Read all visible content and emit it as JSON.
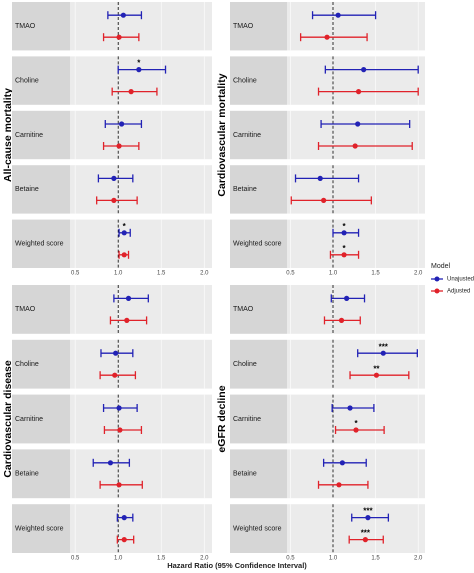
{
  "x_label": "Hazard Ratio (95% Confidence Interval)",
  "legend_title": "Model",
  "chart_data": [
    {
      "type": "forest",
      "title": "All-cause mortality",
      "categories": [
        "TMAO",
        "Choline",
        "Carnitine",
        "Betaine",
        "Weighted score"
      ],
      "xlim": [
        0.44,
        2.09
      ],
      "xticks": [
        0.5,
        {
          "value": 1,
          "label": "1.0"
        },
        1.5,
        {
          "value": 2,
          "label": "2.0"
        }
      ],
      "reference": 1,
      "series": [
        {
          "name": "Unajusted",
          "color": "#2222b5",
          "values": [
            1.06,
            1.24,
            1.04,
            0.95,
            1.07
          ],
          "lower": [
            0.88,
            1.0,
            0.85,
            0.77,
            1.01
          ],
          "upper": [
            1.27,
            1.55,
            1.27,
            1.17,
            1.14
          ],
          "significance": [
            null,
            "*",
            null,
            null,
            "*"
          ]
        },
        {
          "name": "Adjusted",
          "color": "#e0222a",
          "values": [
            1.01,
            1.15,
            1.01,
            0.95,
            1.07
          ],
          "lower": [
            0.83,
            0.93,
            0.83,
            0.75,
            1.01
          ],
          "upper": [
            1.24,
            1.45,
            1.24,
            1.22,
            1.12
          ],
          "significance": [
            null,
            null,
            null,
            null,
            null
          ]
        }
      ]
    },
    {
      "type": "forest",
      "title": "Cardiovascular mortality",
      "categories": [
        "TMAO",
        "Choline",
        "Carnitine",
        "Betaine",
        "Weighted score"
      ],
      "xlim": [
        0.46,
        2.08
      ],
      "xticks": [
        0.5,
        {
          "value": 1,
          "label": "1.0"
        },
        1.5,
        {
          "value": 2,
          "label": "2.0"
        }
      ],
      "reference": 1,
      "series": [
        {
          "name": "Unajusted",
          "color": "#2222b5",
          "values": [
            1.06,
            1.36,
            1.29,
            0.85,
            1.13
          ],
          "lower": [
            0.76,
            0.91,
            0.86,
            0.56,
            1.0
          ],
          "upper": [
            1.5,
            2.0,
            1.9,
            1.3,
            1.3
          ],
          "significance": [
            null,
            null,
            null,
            null,
            "*"
          ]
        },
        {
          "name": "Adjusted",
          "color": "#e0222a",
          "values": [
            0.93,
            1.3,
            1.26,
            0.89,
            1.13
          ],
          "lower": [
            0.62,
            0.83,
            0.83,
            0.51,
            0.97
          ],
          "upper": [
            1.4,
            2.0,
            1.93,
            1.45,
            1.3
          ],
          "significance": [
            null,
            null,
            null,
            null,
            "*"
          ]
        }
      ]
    },
    {
      "type": "forest",
      "title": "Cardiovascular disease",
      "categories": [
        "TMAO",
        "Choline",
        "Carnitine",
        "Betaine",
        "Weighted score"
      ],
      "xlim": [
        0.44,
        2.09
      ],
      "xticks": [
        0.5,
        {
          "value": 1,
          "label": "1.0"
        },
        1.5,
        {
          "value": 2,
          "label": "2.0"
        }
      ],
      "reference": 1,
      "series": [
        {
          "name": "Unajusted",
          "color": "#2222b5",
          "values": [
            1.12,
            0.97,
            1.01,
            0.91,
            1.07
          ],
          "lower": [
            0.95,
            0.8,
            0.83,
            0.71,
            0.99
          ],
          "upper": [
            1.35,
            1.17,
            1.22,
            1.13,
            1.17
          ],
          "significance": [
            null,
            null,
            null,
            null,
            null
          ]
        },
        {
          "name": "Adjusted",
          "color": "#e0222a",
          "values": [
            1.1,
            0.96,
            1.02,
            1.01,
            1.07
          ],
          "lower": [
            0.91,
            0.79,
            0.84,
            0.79,
            0.99
          ],
          "upper": [
            1.33,
            1.2,
            1.27,
            1.28,
            1.18
          ],
          "significance": [
            null,
            null,
            null,
            null,
            null
          ]
        }
      ]
    },
    {
      "type": "forest",
      "title": "eGFR decline",
      "categories": [
        "TMAO",
        "Choline",
        "Carnitine",
        "Betaine",
        "Weighted score"
      ],
      "xlim": [
        0.46,
        2.08
      ],
      "xticks": [
        0.5,
        {
          "value": 1,
          "label": "1.0"
        },
        1.5,
        {
          "value": 2,
          "label": "2.0"
        }
      ],
      "reference": 1,
      "series": [
        {
          "name": "Unajusted",
          "color": "#2222b5",
          "values": [
            1.16,
            1.59,
            1.2,
            1.11,
            1.41
          ],
          "lower": [
            0.98,
            1.29,
            0.99,
            0.89,
            1.22
          ],
          "upper": [
            1.37,
            1.99,
            1.48,
            1.39,
            1.65
          ],
          "significance": [
            null,
            "***",
            null,
            null,
            "***"
          ]
        },
        {
          "name": "Adjusted",
          "color": "#e0222a",
          "values": [
            1.1,
            1.51,
            1.27,
            1.07,
            1.38
          ],
          "lower": [
            0.9,
            1.2,
            1.03,
            0.83,
            1.19
          ],
          "upper": [
            1.32,
            1.89,
            1.6,
            1.41,
            1.59
          ],
          "significance": [
            null,
            "**",
            "*",
            null,
            "***"
          ]
        }
      ]
    }
  ]
}
